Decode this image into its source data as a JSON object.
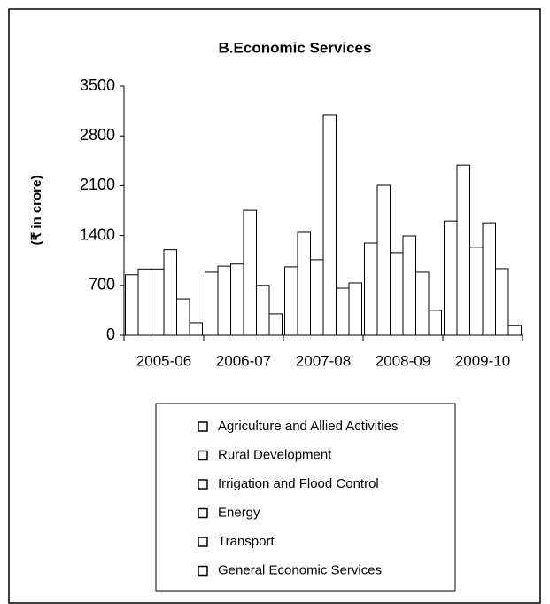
{
  "chart_data": {
    "type": "bar",
    "title": "B.Economic Services",
    "y_label": "(₹ in crore)",
    "categories": [
      "2005-06",
      "2006-07",
      "2007-08",
      "2008-09",
      "2009-10"
    ],
    "series": [
      {
        "name": "Agriculture and Allied Activities",
        "color": "#ffffff",
        "values": [
          850,
          885,
          960,
          1295,
          1605
        ]
      },
      {
        "name": "Rural Development",
        "color": "#ffffff",
        "values": [
          930,
          970,
          1445,
          2105,
          2390
        ]
      },
      {
        "name": "Irrigation and Flood Control",
        "color": "#ffffff",
        "values": [
          930,
          1000,
          1060,
          1160,
          1235
        ]
      },
      {
        "name": "Energy",
        "color": "#ffffff",
        "values": [
          1200,
          1755,
          3090,
          1395,
          1580
        ]
      },
      {
        "name": "Transport",
        "color": "#ffffff",
        "values": [
          510,
          700,
          660,
          885,
          935
        ]
      },
      {
        "name": "General Economic Services",
        "color": "#ffffff",
        "values": [
          175,
          300,
          735,
          350,
          140
        ]
      }
    ],
    "ylim": [
      0,
      3500
    ],
    "yticks": [
      0,
      700,
      1400,
      2100,
      2800,
      3500
    ],
    "grid": false,
    "legend": "bottom"
  }
}
